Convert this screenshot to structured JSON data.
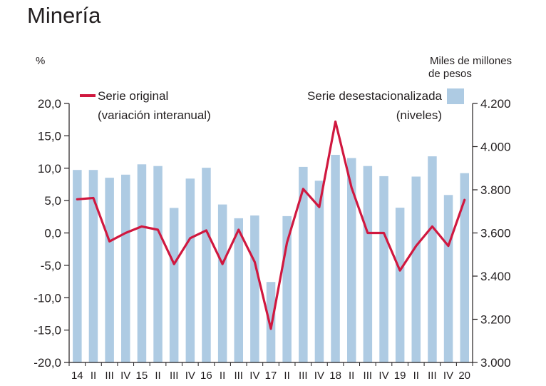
{
  "title": "Minería",
  "chart_data": {
    "type": "bar+line",
    "categories": [
      "14",
      "II",
      "III",
      "IV",
      "15",
      "II",
      "III",
      "IV",
      "16",
      "II",
      "III",
      "IV",
      "17",
      "II",
      "III",
      "IV",
      "18",
      "II",
      "III",
      "IV",
      "19",
      "II",
      "III",
      "IV",
      "20"
    ],
    "series": [
      {
        "name": "Serie desestacionalizada (niveles)",
        "type": "bar",
        "axis": "right",
        "color": "#aecbe3",
        "values": [
          3892,
          3892,
          3856,
          3870,
          3918,
          3910,
          3716,
          3852,
          3902,
          3732,
          3668,
          3681,
          3373,
          3678,
          3906,
          3842,
          3962,
          3947,
          3910,
          3863,
          3717,
          3861,
          3955,
          3776,
          3877
        ]
      },
      {
        "name": "Serie original (variación interanual)",
        "type": "line",
        "axis": "left",
        "color": "#d0183f",
        "values": [
          5.2,
          5.4,
          -1.3,
          0.0,
          1.0,
          0.5,
          -4.8,
          -0.8,
          0.4,
          -4.8,
          0.5,
          -4.5,
          -14.8,
          -1.5,
          6.8,
          4.0,
          17.2,
          7.0,
          0.0,
          0.0,
          -5.8,
          -2.0,
          1.0,
          -2.0,
          5.1
        ]
      }
    ],
    "left_axis": {
      "unit": "%",
      "ticks": [
        "20,0",
        "15,0",
        "10,0",
        "5,0",
        "0,0",
        "-5,0",
        "-10,0",
        "-15,0",
        "-20,0"
      ],
      "ylim": [
        -20,
        20
      ]
    },
    "right_axis": {
      "unit_line1": "Miles de millones",
      "unit_line2": "de pesos",
      "ticks": [
        "4.200",
        "4.000",
        "3.800",
        "3.600",
        "3.400",
        "3.200",
        "3.000"
      ],
      "ylim": [
        3000,
        4200
      ]
    },
    "legend": {
      "line_label1": "Serie original",
      "line_label2": "(variación interanual)",
      "bar_label1": "Serie desestacionalizada",
      "bar_label2": "(niveles)"
    },
    "grid": false
  }
}
